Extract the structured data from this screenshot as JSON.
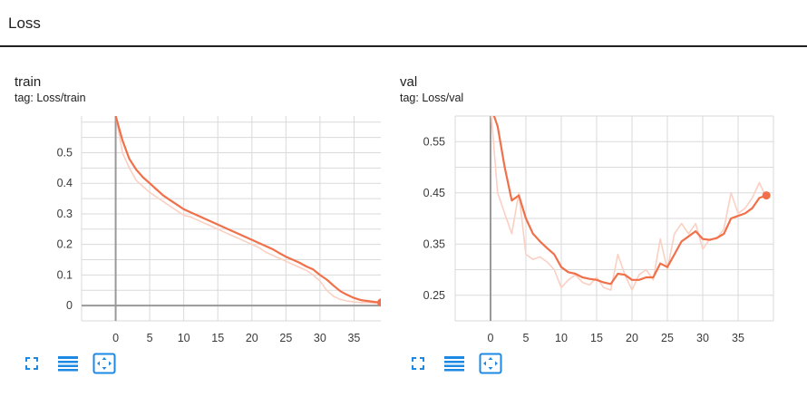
{
  "section": {
    "title": "Loss"
  },
  "colors": {
    "line": "#f0704a",
    "raw": "#fbd0c2",
    "grid": "#dadada",
    "axis": "#999999",
    "toolbar": "#1e88e5"
  },
  "toolbar_icons": [
    "fit-screen-icon",
    "toggle-log-scale-icon",
    "fit-domain-icon"
  ],
  "charts": [
    {
      "title": "train",
      "tag": "tag: Loss/train",
      "chart_data": {
        "type": "line",
        "x_ticks": [
          0,
          5,
          10,
          15,
          20,
          25,
          30,
          35
        ],
        "y_ticks": [
          0,
          0.1,
          0.2,
          0.3,
          0.4,
          0.5
        ],
        "y_tick_labels": [
          "0",
          "0.1",
          "0.2",
          "0.3",
          "0.4",
          "0.5"
        ],
        "xlim": [
          -5,
          40
        ],
        "ylim": [
          -0.05,
          0.62
        ],
        "grid": true,
        "series": [
          {
            "role": "smoothed",
            "x": [
              0,
              1,
              2,
              3,
              4,
              5,
              6,
              7,
              8,
              9,
              10,
              11,
              12,
              13,
              14,
              15,
              16,
              17,
              18,
              19,
              20,
              21,
              22,
              23,
              24,
              25,
              26,
              27,
              28,
              29,
              30,
              31,
              32,
              33,
              34,
              35,
              36,
              37,
              38,
              39
            ],
            "y": [
              0.62,
              0.54,
              0.48,
              0.445,
              0.42,
              0.4,
              0.38,
              0.36,
              0.345,
              0.33,
              0.315,
              0.305,
              0.295,
              0.285,
              0.275,
              0.265,
              0.255,
              0.245,
              0.235,
              0.225,
              0.215,
              0.205,
              0.195,
              0.185,
              0.172,
              0.16,
              0.15,
              0.14,
              0.128,
              0.118,
              0.1,
              0.085,
              0.065,
              0.047,
              0.035,
              0.025,
              0.018,
              0.015,
              0.012,
              0.01
            ]
          },
          {
            "role": "raw",
            "x": [
              0,
              1,
              2,
              3,
              4,
              5,
              6,
              7,
              8,
              9,
              10,
              11,
              12,
              13,
              14,
              15,
              16,
              17,
              18,
              19,
              20,
              21,
              22,
              23,
              24,
              25,
              26,
              27,
              28,
              29,
              30,
              31,
              32,
              33,
              34,
              35,
              36,
              37,
              38,
              39
            ],
            "y": [
              0.62,
              0.5,
              0.45,
              0.41,
              0.39,
              0.37,
              0.355,
              0.34,
              0.325,
              0.31,
              0.295,
              0.29,
              0.28,
              0.27,
              0.26,
              0.25,
              0.24,
              0.23,
              0.22,
              0.21,
              0.2,
              0.19,
              0.175,
              0.165,
              0.155,
              0.145,
              0.135,
              0.125,
              0.115,
              0.1,
              0.08,
              0.05,
              0.03,
              0.02,
              0.015,
              0.012,
              0.01,
              0.01,
              0.008,
              0.008
            ]
          }
        ]
      }
    },
    {
      "title": "val",
      "tag": "tag: Loss/val",
      "chart_data": {
        "type": "line",
        "x_ticks": [
          0,
          5,
          10,
          15,
          20,
          25,
          30,
          35
        ],
        "y_ticks": [
          0.25,
          0.35,
          0.45,
          0.55
        ],
        "y_tick_labels": [
          "0.25",
          "0.35",
          "0.45",
          "0.55"
        ],
        "xlim": [
          -5,
          40
        ],
        "ylim": [
          0.2,
          0.6
        ],
        "grid": true,
        "series": [
          {
            "role": "smoothed",
            "x": [
              0,
              1,
              2,
              3,
              4,
              5,
              6,
              7,
              8,
              9,
              10,
              11,
              12,
              13,
              14,
              15,
              16,
              17,
              18,
              19,
              20,
              21,
              22,
              23,
              24,
              25,
              26,
              27,
              28,
              29,
              30,
              31,
              32,
              33,
              34,
              35,
              36,
              37,
              38,
              39
            ],
            "y": [
              0.62,
              0.58,
              0.5,
              0.435,
              0.445,
              0.4,
              0.37,
              0.355,
              0.342,
              0.33,
              0.305,
              0.295,
              0.292,
              0.285,
              0.282,
              0.28,
              0.275,
              0.272,
              0.292,
              0.29,
              0.28,
              0.28,
              0.285,
              0.285,
              0.312,
              0.305,
              0.33,
              0.355,
              0.365,
              0.375,
              0.36,
              0.358,
              0.362,
              0.37,
              0.4,
              0.405,
              0.41,
              0.42,
              0.44,
              0.445
            ]
          },
          {
            "role": "raw",
            "x": [
              0,
              1,
              2,
              3,
              4,
              5,
              6,
              7,
              8,
              9,
              10,
              11,
              12,
              13,
              14,
              15,
              16,
              17,
              18,
              19,
              20,
              21,
              22,
              23,
              24,
              25,
              26,
              27,
              28,
              29,
              30,
              31,
              32,
              33,
              34,
              35,
              36,
              37,
              38,
              39
            ],
            "y": [
              0.62,
              0.45,
              0.41,
              0.37,
              0.45,
              0.33,
              0.32,
              0.325,
              0.315,
              0.3,
              0.265,
              0.28,
              0.29,
              0.275,
              0.27,
              0.285,
              0.265,
              0.26,
              0.33,
              0.29,
              0.26,
              0.29,
              0.3,
              0.28,
              0.36,
              0.3,
              0.37,
              0.39,
              0.37,
              0.39,
              0.34,
              0.36,
              0.36,
              0.38,
              0.45,
              0.41,
              0.42,
              0.44,
              0.47,
              0.44
            ]
          }
        ]
      }
    }
  ]
}
